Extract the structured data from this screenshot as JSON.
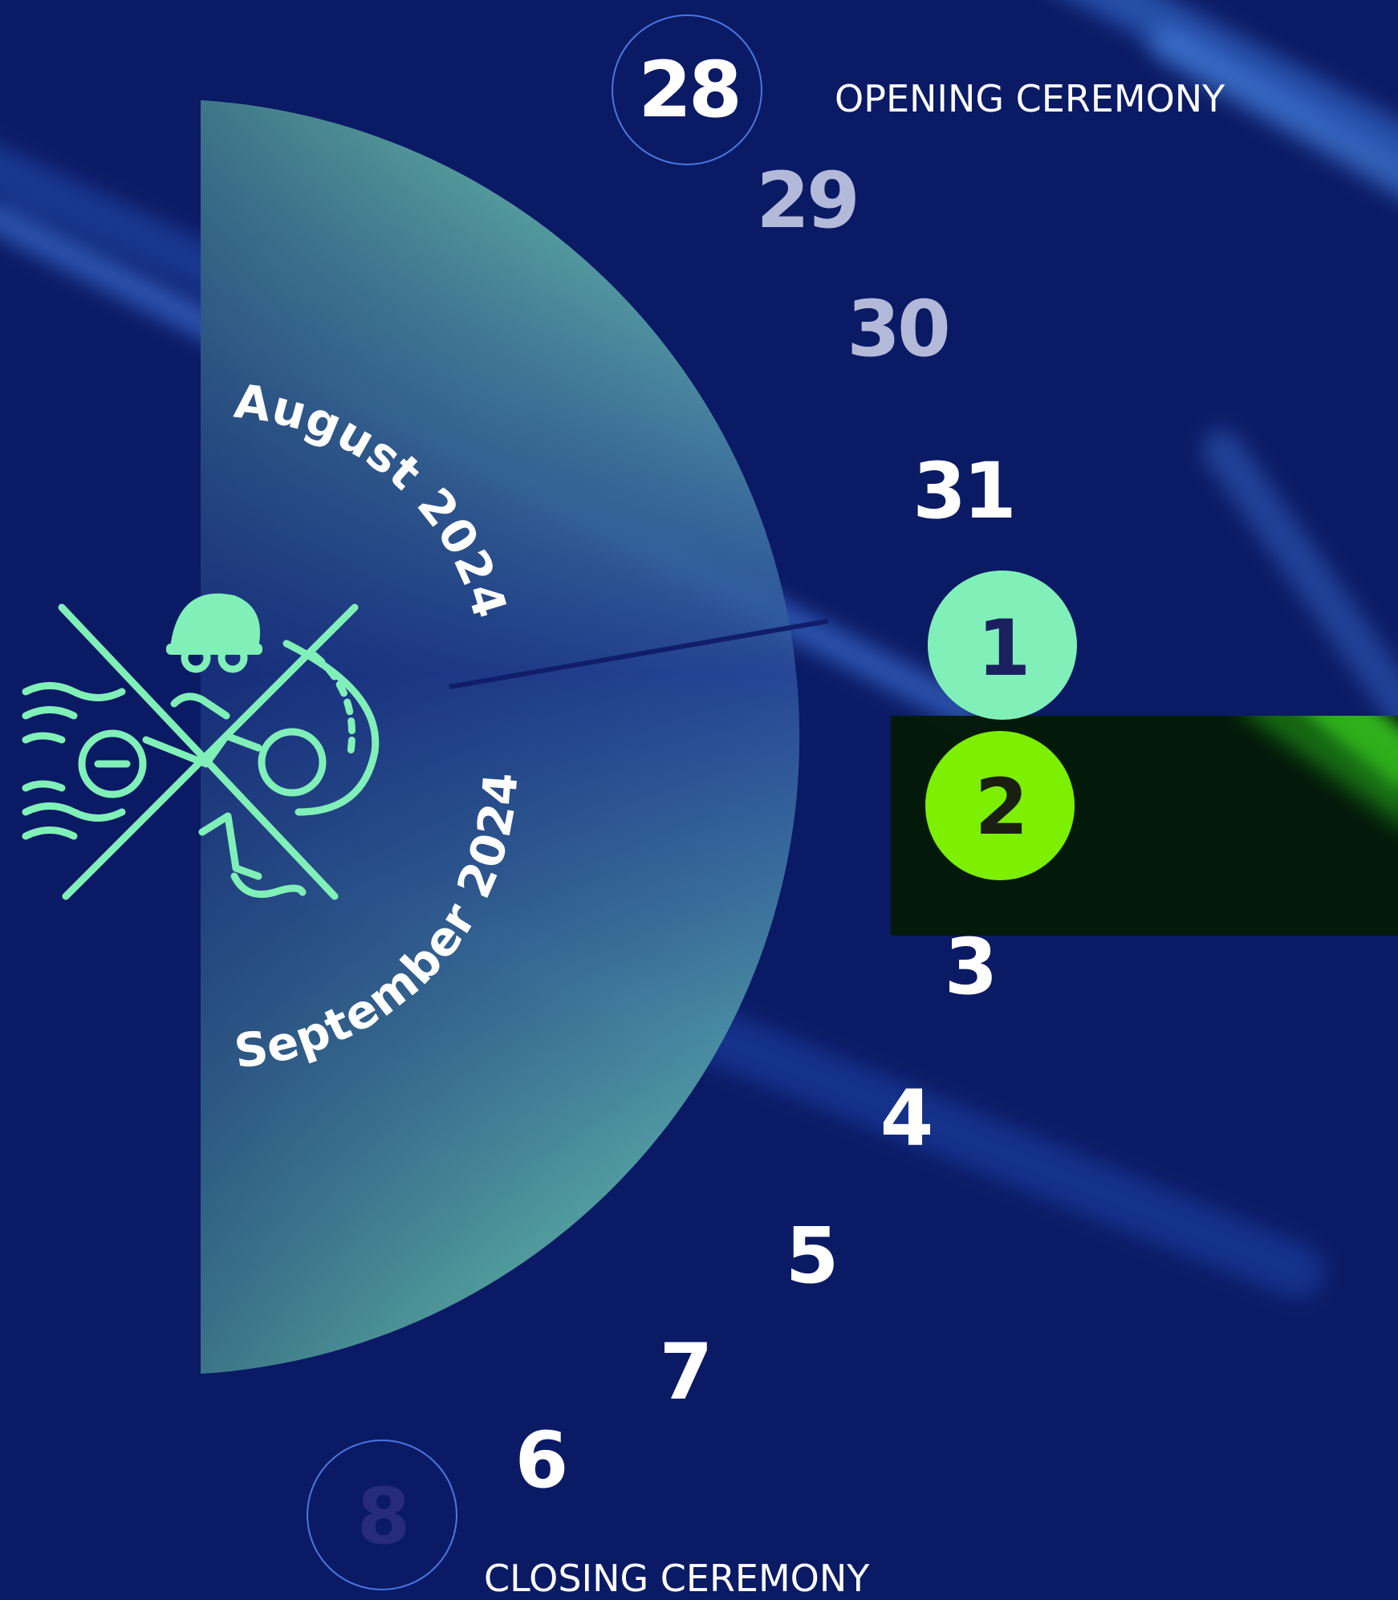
{
  "colors": {
    "background": "#0b1a64",
    "accent_mint": "#80f0b8",
    "accent_green": "#7cf000",
    "dark_digit": "#1b2160"
  },
  "icon": "swim-bike-run-icon",
  "months": {
    "upper": "August 2024",
    "lower": "September 2024"
  },
  "events": {
    "opening": "OPENING CEREMONY",
    "closing": "CLOSING CEREMONY"
  },
  "days": [
    {
      "id": "28",
      "label": "28",
      "state": "ringed"
    },
    {
      "id": "29",
      "label": "29",
      "state": "dim"
    },
    {
      "id": "30",
      "label": "30",
      "state": "dim"
    },
    {
      "id": "31",
      "label": "31",
      "state": "normal"
    },
    {
      "id": "1",
      "label": "1",
      "state": "highlighted"
    },
    {
      "id": "2",
      "label": "2",
      "state": "selected"
    },
    {
      "id": "3",
      "label": "3",
      "state": "normal"
    },
    {
      "id": "4",
      "label": "4",
      "state": "normal"
    },
    {
      "id": "5",
      "label": "5",
      "state": "normal"
    },
    {
      "id": "7",
      "label": "7",
      "state": "normal"
    },
    {
      "id": "6",
      "label": "6",
      "state": "normal"
    },
    {
      "id": "8",
      "label": "8",
      "state": "ringed-faded"
    }
  ]
}
